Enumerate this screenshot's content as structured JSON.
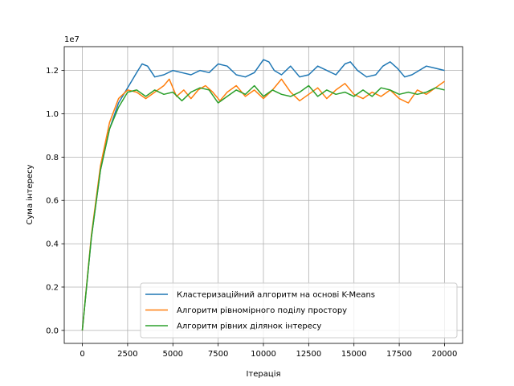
{
  "chart_data": {
    "type": "line",
    "xlabel": "Ітерація",
    "ylabel": "Сума інтересу",
    "y_multiplier_label": "1e7",
    "y_multiplier": 10000000,
    "xlim": [
      -1000,
      21000
    ],
    "ylim": [
      -0.06,
      1.31
    ],
    "x_ticks": [
      0,
      2500,
      5000,
      7500,
      10000,
      12500,
      15000,
      17500,
      20000
    ],
    "x_tick_labels": [
      "0",
      "2500",
      "5000",
      "7500",
      "10000",
      "12500",
      "15000",
      "17500",
      "20000"
    ],
    "y_ticks": [
      0.0,
      0.2,
      0.4,
      0.6,
      0.8,
      1.0,
      1.2
    ],
    "y_tick_labels": [
      "0.0",
      "0.2",
      "0.4",
      "0.6",
      "0.8",
      "1.0",
      "1.2"
    ],
    "grid": true,
    "legend_position": "lower right",
    "series": [
      {
        "name": "Кластеризаційний алгоритм на основі K-Means",
        "color": "#1f77b4",
        "x": [
          0,
          500,
          1000,
          1500,
          2000,
          2500,
          3000,
          3300,
          3600,
          4000,
          4500,
          5000,
          5500,
          6000,
          6500,
          7000,
          7500,
          8000,
          8500,
          9000,
          9500,
          10000,
          10300,
          10600,
          11000,
          11500,
          12000,
          12500,
          13000,
          13500,
          14000,
          14500,
          14800,
          15200,
          15700,
          16200,
          16600,
          17000,
          17400,
          17800,
          18200,
          18600,
          19000,
          19500,
          20000
        ],
        "y": [
          0.0,
          0.43,
          0.74,
          0.93,
          1.05,
          1.12,
          1.19,
          1.23,
          1.22,
          1.17,
          1.18,
          1.2,
          1.19,
          1.18,
          1.2,
          1.19,
          1.23,
          1.22,
          1.18,
          1.17,
          1.19,
          1.25,
          1.24,
          1.2,
          1.18,
          1.22,
          1.17,
          1.18,
          1.22,
          1.2,
          1.18,
          1.23,
          1.24,
          1.2,
          1.17,
          1.18,
          1.22,
          1.24,
          1.21,
          1.17,
          1.18,
          1.2,
          1.22,
          1.21,
          1.2
        ]
      },
      {
        "name": "Алгоритм рівномірного поділу простору",
        "color": "#ff7f0e",
        "x": [
          0,
          500,
          1000,
          1500,
          2000,
          2500,
          3000,
          3500,
          4000,
          4500,
          4800,
          5200,
          5600,
          6000,
          6400,
          6800,
          7200,
          7600,
          8000,
          8500,
          9000,
          9500,
          10000,
          10500,
          11000,
          11500,
          12000,
          12500,
          13000,
          13500,
          14000,
          14500,
          15000,
          15500,
          16000,
          16500,
          17000,
          17500,
          18000,
          18500,
          19000,
          19500,
          20000
        ],
        "y": [
          0.0,
          0.44,
          0.76,
          0.96,
          1.07,
          1.11,
          1.1,
          1.07,
          1.1,
          1.13,
          1.16,
          1.08,
          1.11,
          1.07,
          1.11,
          1.13,
          1.1,
          1.06,
          1.1,
          1.13,
          1.08,
          1.11,
          1.07,
          1.11,
          1.16,
          1.1,
          1.06,
          1.09,
          1.12,
          1.07,
          1.11,
          1.14,
          1.09,
          1.07,
          1.1,
          1.08,
          1.11,
          1.07,
          1.05,
          1.11,
          1.09,
          1.12,
          1.15
        ]
      },
      {
        "name": "Алгоритм рівних ділянок інтересу",
        "color": "#2ca02c",
        "x": [
          0,
          500,
          1000,
          1500,
          2000,
          2500,
          3000,
          3500,
          4000,
          4500,
          5000,
          5500,
          6000,
          6500,
          7000,
          7500,
          8000,
          8500,
          9000,
          9500,
          10000,
          10500,
          11000,
          11500,
          12000,
          12500,
          13000,
          13500,
          14000,
          14500,
          15000,
          15500,
          16000,
          16500,
          17000,
          17500,
          18000,
          18500,
          19000,
          19500,
          20000
        ],
        "y": [
          0.0,
          0.43,
          0.74,
          0.93,
          1.03,
          1.1,
          1.11,
          1.08,
          1.11,
          1.09,
          1.1,
          1.06,
          1.1,
          1.12,
          1.11,
          1.05,
          1.08,
          1.11,
          1.09,
          1.13,
          1.08,
          1.11,
          1.09,
          1.08,
          1.1,
          1.13,
          1.08,
          1.11,
          1.09,
          1.1,
          1.08,
          1.11,
          1.08,
          1.12,
          1.11,
          1.09,
          1.1,
          1.09,
          1.1,
          1.12,
          1.11
        ]
      }
    ]
  }
}
